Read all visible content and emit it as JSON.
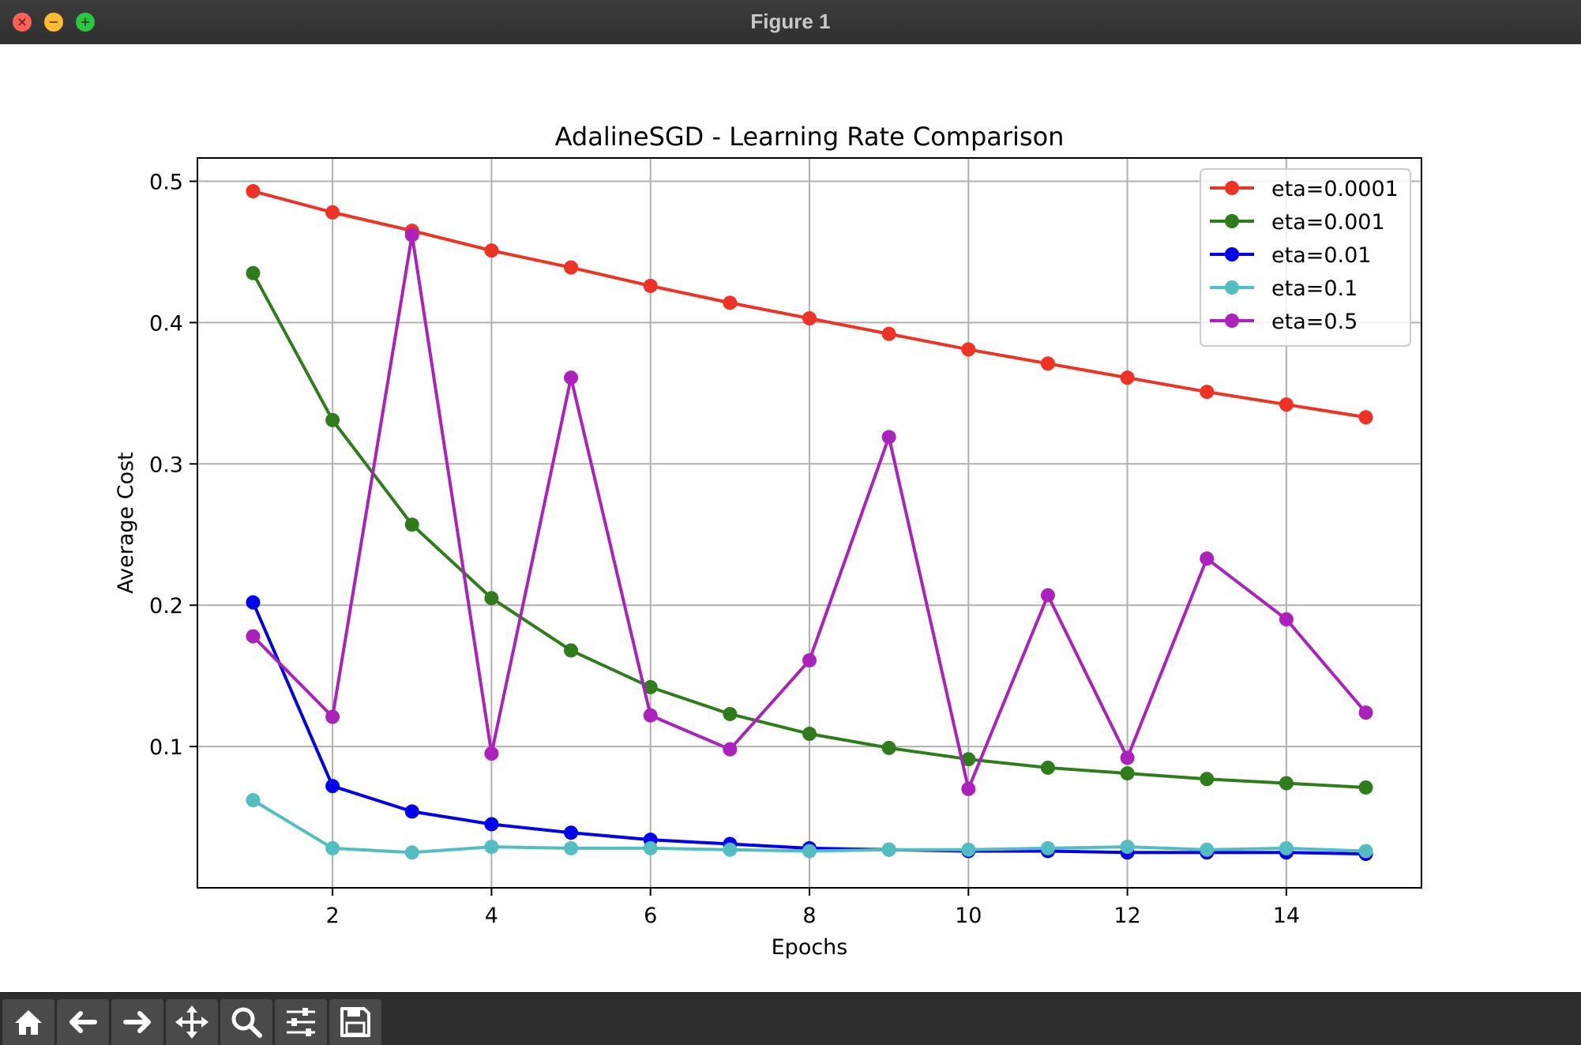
{
  "window": {
    "title": "Figure 1"
  },
  "toolbar": {
    "buttons": [
      {
        "name": "home-button",
        "icon": "home-icon"
      },
      {
        "name": "back-button",
        "icon": "arrow-left-icon"
      },
      {
        "name": "forward-button",
        "icon": "arrow-right-icon"
      },
      {
        "name": "pan-button",
        "icon": "move-icon"
      },
      {
        "name": "zoom-button",
        "icon": "search-icon"
      },
      {
        "name": "configure-subplots-button",
        "icon": "sliders-icon"
      },
      {
        "name": "save-button",
        "icon": "save-icon"
      }
    ]
  },
  "chart_data": {
    "type": "line",
    "title": "AdalineSGD - Learning Rate Comparison",
    "xlabel": "Epochs",
    "ylabel": "Average Cost",
    "xlim": [
      0.3,
      15.7
    ],
    "ylim": [
      0.0,
      0.5165
    ],
    "xticks": [
      2,
      4,
      6,
      8,
      10,
      12,
      14
    ],
    "yticks": [
      0.1,
      0.2,
      0.3,
      0.4,
      0.5
    ],
    "grid": true,
    "legend_position": "top-right",
    "marker": "circle",
    "x": [
      1,
      2,
      3,
      4,
      5,
      6,
      7,
      8,
      9,
      10,
      11,
      12,
      13,
      14,
      15
    ],
    "series": [
      {
        "name": "eta=0.0001",
        "color": "#ee3224",
        "values": [
          0.493,
          0.478,
          0.465,
          0.451,
          0.439,
          0.426,
          0.414,
          0.403,
          0.392,
          0.381,
          0.371,
          0.361,
          0.351,
          0.342,
          0.333
        ]
      },
      {
        "name": "eta=0.001",
        "color": "#2e7d1a",
        "values": [
          0.435,
          0.331,
          0.257,
          0.205,
          0.168,
          0.142,
          0.123,
          0.109,
          0.099,
          0.091,
          0.085,
          0.081,
          0.077,
          0.074,
          0.071
        ]
      },
      {
        "name": "eta=0.01",
        "color": "#0000ee",
        "values": [
          0.202,
          0.072,
          0.054,
          0.045,
          0.039,
          0.034,
          0.031,
          0.028,
          0.027,
          0.026,
          0.026,
          0.025,
          0.025,
          0.025,
          0.024
        ]
      },
      {
        "name": "eta=0.1",
        "color": "#52bec2",
        "values": [
          0.062,
          0.028,
          0.025,
          0.029,
          0.028,
          0.028,
          0.027,
          0.026,
          0.027,
          0.027,
          0.028,
          0.029,
          0.027,
          0.028,
          0.026
        ]
      },
      {
        "name": "eta=0.5",
        "color": "#aa22bb",
        "values": [
          0.178,
          0.121,
          0.462,
          0.095,
          0.361,
          0.122,
          0.098,
          0.161,
          0.319,
          0.07,
          0.207,
          0.092,
          0.233,
          0.19,
          0.124
        ]
      }
    ]
  }
}
